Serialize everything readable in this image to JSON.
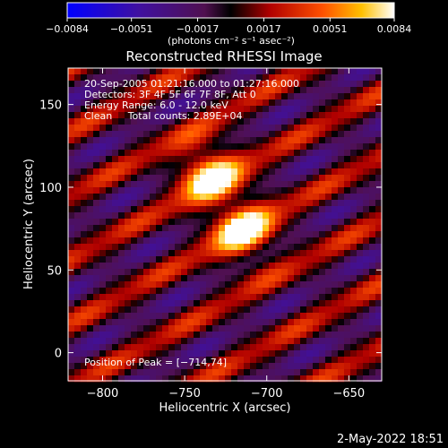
{
  "chart_data": {
    "type": "heatmap",
    "title": "Reconstructed RHESSI Image",
    "xlabel": "Heliocentric X (arcsec)",
    "ylabel": "Heliocentric Y (arcsec)",
    "xlim": [
      -821,
      -630
    ],
    "ylim": [
      -17,
      172
    ],
    "xticks": [
      -800,
      -750,
      -700,
      -650
    ],
    "yticks": [
      0,
      50,
      100,
      150
    ],
    "xtick_labels": [
      "−800",
      "−750",
      "−700",
      "−650"
    ],
    "ytick_labels": [
      "0",
      "50",
      "100",
      "150"
    ],
    "colorbar": {
      "range": [
        -0.0084,
        0.0084
      ],
      "ticks": [
        -0.0084,
        -0.0051,
        -0.0017,
        0.0017,
        0.0051,
        0.0084
      ],
      "tick_labels": [
        "−0.0084",
        "−0.0051",
        "−0.0017",
        "0.0017",
        "0.0051",
        "0.0084"
      ],
      "unit_label": "(photons cm⁻² s⁻¹ asec⁻²)",
      "colormap": "blue-purple-red-yellow-white"
    },
    "annotations": [
      "20-Sep-2005 01:21:16.000 to 01:27:16.000",
      "Detectors: 3F 4F 5F 6F 7F 8F, Att 0",
      "Energy Range: 6.0 - 12.0 keV",
      "Clean     Total counts: 2.89E+04"
    ],
    "peak_label": "Position of Peak = [−714,74]",
    "peak": [
      -714,
      74
    ],
    "sources": [
      {
        "x": -735,
        "y": 108,
        "amp": 0.0084
      },
      {
        "x": -714,
        "y": 74,
        "amp": 0.0084
      }
    ]
  },
  "footer": {
    "timestamp": "2-May-2022 18:51"
  },
  "colors": {
    "background": "#000000",
    "foreground": "#ffffff"
  }
}
